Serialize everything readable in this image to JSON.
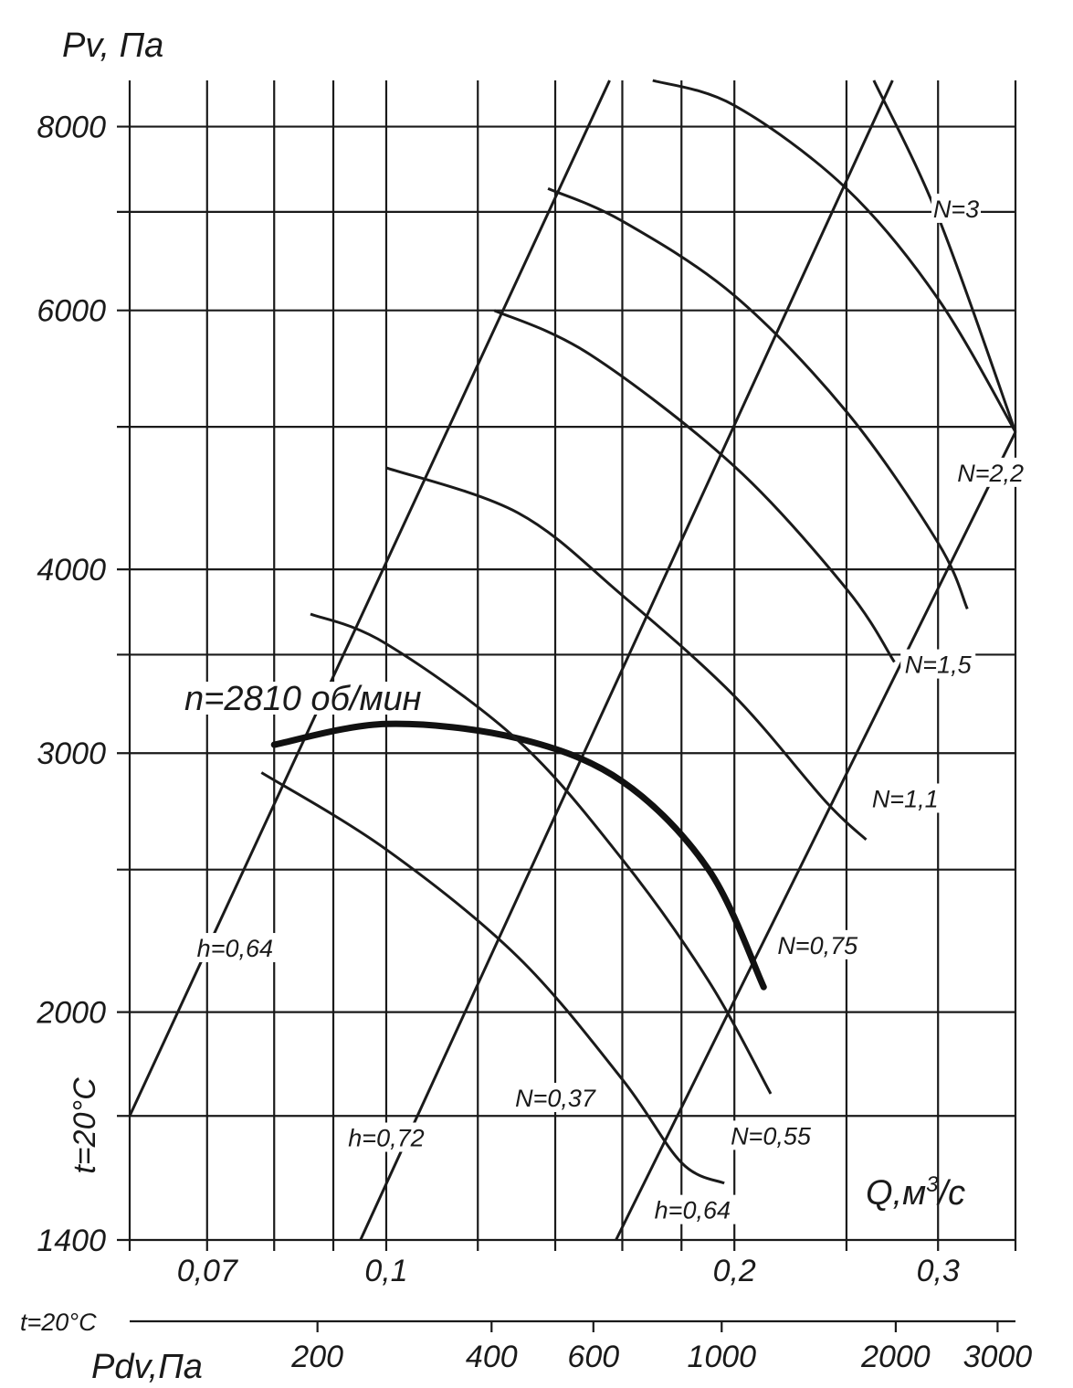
{
  "chart_data": {
    "type": "line",
    "title": "",
    "ylabel": "Pv, Па",
    "xlabel": "Q,м3/с",
    "xlabel_parts": {
      "base": "Q,м",
      "sup": "3",
      "tail": "/с"
    },
    "temperature_label": "t=20°C",
    "bottom_scale_label": "Pdv,Па",
    "bottom_scale_temperature": "t=20°C",
    "x_scale": "log",
    "y_scale": "log",
    "xlim": [
      0.06,
      0.35
    ],
    "ylim": [
      1400,
      8600
    ],
    "grid": true,
    "y_ticks": [
      "8000",
      "6000",
      "4000",
      "3000",
      "2000",
      "1400"
    ],
    "x_ticks": [
      "0,07",
      "0,1",
      "0,2",
      "0,3"
    ],
    "pdv_ticks": [
      "200",
      "400",
      "600",
      "1000",
      "2000",
      "3000"
    ],
    "speed_label": "n=2810 об/мин",
    "series": [
      {
        "name": "n=2810 об/мин",
        "bold": true,
        "x": [
          0.08,
          0.1,
          0.13,
          0.16,
          0.19,
          0.212
        ],
        "y": [
          3040,
          3140,
          3070,
          2870,
          2500,
          2080
        ]
      },
      {
        "x": [
          0.078,
          0.1,
          0.13,
          0.16,
          0.18,
          0.196
        ],
        "y": [
          2910,
          2580,
          2180,
          1800,
          1580,
          1530
        ]
      },
      {
        "x": [
          0.086,
          0.1,
          0.13,
          0.16,
          0.19,
          0.215
        ],
        "y": [
          3730,
          3560,
          3060,
          2540,
          2100,
          1760
        ]
      },
      {
        "x": [
          0.1,
          0.13,
          0.16,
          0.2,
          0.24,
          0.26
        ],
        "y": [
          4690,
          4370,
          3840,
          3280,
          2780,
          2620
        ]
      },
      {
        "x": [
          0.124,
          0.15,
          0.2,
          0.25,
          0.275
        ],
        "y": [
          6000,
          5600,
          4700,
          3880,
          3460
        ]
      },
      {
        "x": [
          0.138,
          0.16,
          0.2,
          0.25,
          0.3,
          0.318
        ],
        "y": [
          7260,
          6900,
          6140,
          5120,
          4170,
          3760
        ]
      },
      {
        "x": [
          0.17,
          0.2,
          0.25,
          0.3,
          0.35
        ],
        "y": [
          8600,
          8270,
          7260,
          6110,
          4960
        ]
      },
      {
        "x": [
          0.264,
          0.3,
          0.35
        ],
        "y": [
          8600,
          6950,
          4960
        ]
      }
    ],
    "efficiency_lines": [
      {
        "label": "h=0,64",
        "x": [
          0.06,
          0.156
        ],
        "y": [
          1700,
          8600
        ]
      },
      {
        "label": "h=0,72",
        "x": [
          0.095,
          0.274
        ],
        "y": [
          1400,
          8600
        ]
      },
      {
        "label": "h=0,64",
        "x": [
          0.158,
          0.35
        ],
        "y": [
          1400,
          4960
        ]
      }
    ],
    "power_labels": [
      "N=0,37",
      "N=0,55",
      "N=0,75",
      "N=1,1",
      "N=1,5",
      "N=2,2",
      "N=3"
    ]
  }
}
